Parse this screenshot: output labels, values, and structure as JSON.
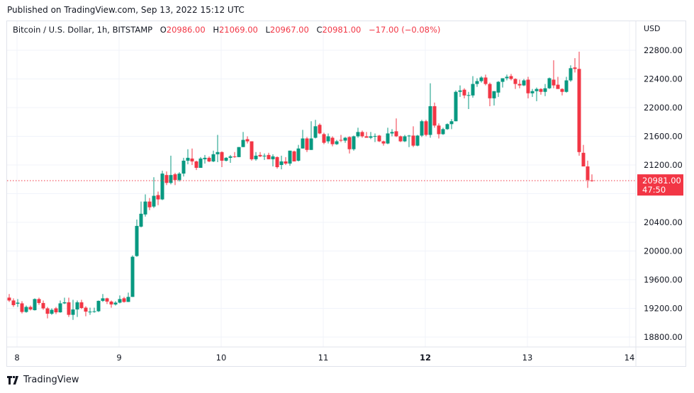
{
  "header": {
    "published": "Published on TradingView.com, Sep 13, 2022 15:12 UTC"
  },
  "legend": {
    "symbol": "Bitcoin / U.S. Dollar, 1h, BITSTAMP",
    "o_label": "O",
    "o": "20986.00",
    "h_label": "H",
    "h": "21069.00",
    "l_label": "L",
    "l": "20967.00",
    "c_label": "C",
    "c": "20981.00",
    "change": "−17.00 (−0.08%)"
  },
  "footer": {
    "brand": "TradingView"
  },
  "colors": {
    "up": "#089981",
    "down": "#f23645",
    "grid": "#f0f3fa",
    "price_line": "#f23645"
  },
  "chart_data": {
    "type": "candlestick",
    "interval": "1h",
    "currency_label": "USD",
    "first_candle": "Sep 7 22:00",
    "ylim": [
      18700,
      22950
    ],
    "y_ticks": [
      "22800.00",
      "22400.00",
      "22000.00",
      "21600.00",
      "21200.00",
      "20800.00",
      "20400.00",
      "20000.00",
      "19600.00",
      "19200.00",
      "18800.00"
    ],
    "y_tick_values": [
      22800,
      22400,
      22000,
      21600,
      21200,
      20800,
      20400,
      20000,
      19600,
      19200,
      18800
    ],
    "x_ticks": [
      {
        "label": "8",
        "bold": false
      },
      {
        "label": "9",
        "bold": false
      },
      {
        "label": "10",
        "bold": false
      },
      {
        "label": "11",
        "bold": false
      },
      {
        "label": "12",
        "bold": true
      },
      {
        "label": "13",
        "bold": false
      },
      {
        "label": "14",
        "bold": false
      }
    ],
    "last_price": {
      "value": 20981,
      "label": "20981.00",
      "countdown": "47:50"
    },
    "grid": true,
    "candles_ohlc": [
      [
        19350,
        19400,
        19290,
        19310
      ],
      [
        19310,
        19340,
        19220,
        19245
      ],
      [
        19265,
        19330,
        19220,
        19280
      ],
      [
        19270,
        19300,
        19130,
        19150
      ],
      [
        19150,
        19240,
        19140,
        19220
      ],
      [
        19220,
        19240,
        19170,
        19185
      ],
      [
        19175,
        19340,
        19170,
        19330
      ],
      [
        19330,
        19350,
        19250,
        19275
      ],
      [
        19275,
        19310,
        19180,
        19200
      ],
      [
        19200,
        19220,
        19060,
        19125
      ],
      [
        19125,
        19200,
        19110,
        19180
      ],
      [
        19200,
        19220,
        19120,
        19145
      ],
      [
        19145,
        19310,
        19140,
        19270
      ],
      [
        19270,
        19350,
        19260,
        19285
      ],
      [
        19285,
        19350,
        19080,
        19110
      ],
      [
        19110,
        19320,
        19040,
        19185
      ],
      [
        19185,
        19310,
        19080,
        19285
      ],
      [
        19285,
        19320,
        19190,
        19205
      ],
      [
        19210,
        19230,
        19090,
        19155
      ],
      [
        19145,
        19210,
        19110,
        19155
      ],
      [
        19155,
        19210,
        19140,
        19160
      ],
      [
        19160,
        19310,
        19150,
        19305
      ],
      [
        19305,
        19400,
        19290,
        19340
      ],
      [
        19340,
        19350,
        19260,
        19295
      ],
      [
        19295,
        19310,
        19210,
        19255
      ],
      [
        19255,
        19300,
        19240,
        19280
      ],
      [
        19280,
        19380,
        19270,
        19330
      ],
      [
        19340,
        19360,
        19280,
        19290
      ],
      [
        19290,
        19420,
        19290,
        19360
      ],
      [
        19360,
        19940,
        19360,
        19920
      ],
      [
        19930,
        20440,
        19920,
        20350
      ],
      [
        20340,
        20690,
        20330,
        20520
      ],
      [
        20510,
        20790,
        20480,
        20690
      ],
      [
        20690,
        20740,
        20570,
        20610
      ],
      [
        20620,
        21030,
        20600,
        20770
      ],
      [
        20780,
        20830,
        20640,
        20720
      ],
      [
        20720,
        21120,
        20710,
        21080
      ],
      [
        21060,
        21110,
        20920,
        20950
      ],
      [
        20950,
        21330,
        20930,
        21060
      ],
      [
        21070,
        21090,
        20920,
        20990
      ],
      [
        20990,
        21100,
        20970,
        21080
      ],
      [
        21080,
        21300,
        21040,
        21260
      ],
      [
        21260,
        21420,
        21210,
        21300
      ],
      [
        21290,
        21430,
        21200,
        21250
      ],
      [
        21250,
        21260,
        21130,
        21160
      ],
      [
        21160,
        21310,
        21160,
        21290
      ],
      [
        21280,
        21340,
        21220,
        21300
      ],
      [
        21300,
        21320,
        21240,
        21250
      ],
      [
        21250,
        21400,
        21240,
        21350
      ],
      [
        21350,
        21620,
        21240,
        21380
      ],
      [
        21380,
        21390,
        21170,
        21260
      ],
      [
        21260,
        21310,
        21250,
        21300
      ],
      [
        21300,
        21340,
        21230,
        21320
      ],
      [
        21320,
        21380,
        21300,
        21310
      ],
      [
        21310,
        21450,
        21310,
        21450
      ],
      [
        21450,
        21660,
        21450,
        21550
      ],
      [
        21560,
        21600,
        21500,
        21530
      ],
      [
        21530,
        21530,
        21260,
        21280
      ],
      [
        21280,
        21380,
        21260,
        21330
      ],
      [
        21340,
        21380,
        21310,
        21320
      ],
      [
        21320,
        21360,
        21270,
        21330
      ],
      [
        21340,
        21370,
        21280,
        21280
      ],
      [
        21280,
        21350,
        21180,
        21320
      ],
      [
        21310,
        21320,
        21150,
        21170
      ],
      [
        21200,
        21330,
        21140,
        21250
      ],
      [
        21250,
        21310,
        21200,
        21220
      ],
      [
        21220,
        21400,
        21190,
        21400
      ],
      [
        21390,
        21400,
        21250,
        21250
      ],
      [
        21260,
        21480,
        21250,
        21430
      ],
      [
        21430,
        21690,
        21430,
        21570
      ],
      [
        21570,
        21590,
        21380,
        21410
      ],
      [
        21410,
        21810,
        21410,
        21570
      ],
      [
        21580,
        21830,
        21570,
        21740
      ],
      [
        21760,
        21780,
        21630,
        21640
      ],
      [
        21630,
        21650,
        21490,
        21510
      ],
      [
        21530,
        21640,
        21500,
        21600
      ],
      [
        21580,
        21600,
        21460,
        21490
      ],
      [
        21490,
        21550,
        21480,
        21530
      ],
      [
        21550,
        21620,
        21520,
        21540
      ],
      [
        21540,
        21590,
        21510,
        21580
      ],
      [
        21590,
        21600,
        21360,
        21420
      ],
      [
        21420,
        21610,
        21400,
        21600
      ],
      [
        21600,
        21720,
        21580,
        21660
      ],
      [
        21660,
        21680,
        21580,
        21600
      ],
      [
        21600,
        21660,
        21580,
        21580
      ],
      [
        21580,
        21660,
        21560,
        21600
      ],
      [
        21600,
        21640,
        21520,
        21605
      ],
      [
        21610,
        21620,
        21520,
        21530
      ],
      [
        21530,
        21540,
        21470,
        21500
      ],
      [
        21500,
        21720,
        21490,
        21640
      ],
      [
        21640,
        21700,
        21600,
        21660
      ],
      [
        21670,
        21850,
        21590,
        21600
      ],
      [
        21600,
        21610,
        21520,
        21530
      ],
      [
        21530,
        21620,
        21520,
        21600
      ],
      [
        21600,
        21620,
        21450,
        21610
      ],
      [
        21610,
        21740,
        21450,
        21470
      ],
      [
        21470,
        21620,
        21460,
        21610
      ],
      [
        21610,
        21830,
        21590,
        21810
      ],
      [
        21810,
        21830,
        21600,
        21620
      ],
      [
        21620,
        22340,
        21580,
        22020
      ],
      [
        22020,
        22070,
        21720,
        21750
      ],
      [
        21750,
        21780,
        21570,
        21630
      ],
      [
        21630,
        21720,
        21620,
        21700
      ],
      [
        21700,
        21780,
        21690,
        21770
      ],
      [
        21770,
        21840,
        21700,
        21810
      ],
      [
        21810,
        22240,
        21810,
        22220
      ],
      [
        22220,
        22310,
        22150,
        22240
      ],
      [
        22250,
        22270,
        22130,
        22170
      ],
      [
        22170,
        22220,
        21980,
        22175
      ],
      [
        22170,
        22440,
        22140,
        22330
      ],
      [
        22330,
        22410,
        22290,
        22370
      ],
      [
        22370,
        22440,
        22350,
        22420
      ],
      [
        22420,
        22460,
        22310,
        22330
      ],
      [
        22330,
        22350,
        22020,
        22130
      ],
      [
        22130,
        22230,
        22030,
        22230
      ],
      [
        22210,
        22370,
        22150,
        22360
      ],
      [
        22360,
        22410,
        22280,
        22410
      ],
      [
        22410,
        22460,
        22380,
        22430
      ],
      [
        22440,
        22470,
        22380,
        22400
      ],
      [
        22400,
        22410,
        22260,
        22330
      ],
      [
        22330,
        22390,
        22270,
        22310
      ],
      [
        22310,
        22400,
        22300,
        22380
      ],
      [
        22390,
        22430,
        22130,
        22200
      ],
      [
        22200,
        22260,
        22150,
        22230
      ],
      [
        22230,
        22280,
        22090,
        22260
      ],
      [
        22260,
        22270,
        22180,
        22220
      ],
      [
        22220,
        22330,
        22160,
        22270
      ],
      [
        22270,
        22420,
        22260,
        22410
      ],
      [
        22390,
        22660,
        22270,
        22310
      ],
      [
        22320,
        22430,
        22270,
        22260
      ],
      [
        22260,
        22270,
        22170,
        22220
      ],
      [
        22220,
        22430,
        22210,
        22380
      ],
      [
        22380,
        22590,
        22360,
        22550
      ],
      [
        22560,
        22690,
        22490,
        22540
      ],
      [
        22540,
        22780,
        21330,
        21380
      ],
      [
        21370,
        21480,
        21180,
        21180
      ],
      [
        21180,
        21260,
        20880,
        20990
      ],
      [
        20986,
        21069,
        20967,
        20981
      ]
    ]
  }
}
